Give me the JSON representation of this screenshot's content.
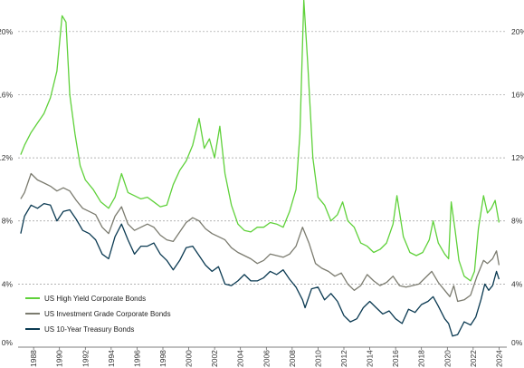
{
  "chart_data": {
    "type": "line",
    "title": "",
    "xlabel": "",
    "ylabel": "",
    "ylim": [
      0,
      22
    ],
    "xlim": [
      1986.8,
      2024.6
    ],
    "y_ticks": [
      "0%",
      "4%",
      "8%",
      "12%",
      "16%",
      "20%"
    ],
    "y_tick_values": [
      0,
      4,
      8,
      12,
      16,
      20
    ],
    "x_ticks": [
      "1988",
      "1990",
      "1992",
      "1994",
      "1996",
      "1998",
      "2000",
      "2002",
      "2004",
      "2006",
      "2008",
      "2010",
      "2012",
      "2014",
      "2016",
      "2018",
      "2020",
      "2022",
      "2024"
    ],
    "x_tick_values": [
      1988,
      1990,
      1992,
      1994,
      1996,
      1998,
      2000,
      2002,
      2004,
      2006,
      2008,
      2010,
      2012,
      2014,
      2016,
      2018,
      2020,
      2022,
      2024
    ],
    "grid": true,
    "legend_position": "bottom-left",
    "series": [
      {
        "name": "US High Yield Corporate Bonds",
        "color": "#5fd13a",
        "x": [
          1987.0,
          1987.3,
          1987.8,
          1988.3,
          1988.8,
          1989.3,
          1989.8,
          1990.2,
          1990.5,
          1990.8,
          1991.2,
          1991.6,
          1992.0,
          1992.6,
          1993.2,
          1993.8,
          1994.3,
          1994.8,
          1995.3,
          1995.8,
          1996.3,
          1996.8,
          1997.3,
          1997.8,
          1998.3,
          1998.8,
          1999.3,
          1999.8,
          2000.3,
          2000.8,
          2001.2,
          2001.6,
          2002.0,
          2002.4,
          2002.8,
          2003.3,
          2003.8,
          2004.3,
          2004.8,
          2005.3,
          2005.8,
          2006.3,
          2006.8,
          2007.3,
          2007.8,
          2008.3,
          2008.6,
          2008.9,
          2009.2,
          2009.6,
          2010.0,
          2010.5,
          2011.0,
          2011.5,
          2011.9,
          2012.3,
          2012.8,
          2013.3,
          2013.8,
          2014.3,
          2014.8,
          2015.3,
          2015.8,
          2016.1,
          2016.6,
          2017.1,
          2017.6,
          2018.1,
          2018.6,
          2018.9,
          2019.3,
          2019.8,
          2020.1,
          2020.3,
          2020.6,
          2020.9,
          2021.3,
          2021.8,
          2022.1,
          2022.4,
          2022.8,
          2023.1,
          2023.4,
          2023.7,
          2024.0
        ],
        "values": [
          12.2,
          12.8,
          13.6,
          14.2,
          14.8,
          15.8,
          17.5,
          21.0,
          20.6,
          16.0,
          13.5,
          11.5,
          10.6,
          10.0,
          9.2,
          8.8,
          9.5,
          11.0,
          9.8,
          9.6,
          9.4,
          9.5,
          9.2,
          8.9,
          9.0,
          10.3,
          11.2,
          11.8,
          12.8,
          14.5,
          12.6,
          13.2,
          12.0,
          14.0,
          11.0,
          9.0,
          7.8,
          7.4,
          7.3,
          7.6,
          7.6,
          7.9,
          7.8,
          7.6,
          8.6,
          10.0,
          13.5,
          22.0,
          18.0,
          12.0,
          9.5,
          9.0,
          8.0,
          8.4,
          9.2,
          8.0,
          7.6,
          6.6,
          6.4,
          6.0,
          6.2,
          6.6,
          7.8,
          9.6,
          7.0,
          6.0,
          5.8,
          6.0,
          6.8,
          8.0,
          6.6,
          5.9,
          5.6,
          9.2,
          7.4,
          5.5,
          4.5,
          4.2,
          4.8,
          7.5,
          9.6,
          8.5,
          8.8,
          9.3,
          7.9
        ]
      },
      {
        "name": "US Investment Grade Corporate Bonds",
        "color": "#7b7b6f",
        "x": [
          1987.0,
          1987.3,
          1987.8,
          1988.3,
          1988.8,
          1989.3,
          1989.8,
          1990.3,
          1990.8,
          1991.3,
          1991.8,
          1992.3,
          1992.8,
          1993.3,
          1993.8,
          1994.3,
          1994.8,
          1995.3,
          1995.8,
          1996.3,
          1996.8,
          1997.3,
          1997.8,
          1998.3,
          1998.8,
          1999.3,
          1999.8,
          2000.3,
          2000.8,
          2001.3,
          2001.8,
          2002.3,
          2002.8,
          2003.3,
          2003.8,
          2004.3,
          2004.8,
          2005.3,
          2005.8,
          2006.3,
          2006.8,
          2007.3,
          2007.8,
          2008.3,
          2008.8,
          2009.3,
          2009.8,
          2010.3,
          2010.8,
          2011.3,
          2011.8,
          2012.3,
          2012.8,
          2013.3,
          2013.8,
          2014.3,
          2014.8,
          2015.3,
          2015.8,
          2016.3,
          2016.8,
          2017.3,
          2017.8,
          2018.3,
          2018.8,
          2019.3,
          2019.8,
          2020.2,
          2020.5,
          2020.8,
          2021.3,
          2021.8,
          2022.3,
          2022.8,
          2023.1,
          2023.5,
          2023.8,
          2024.0
        ],
        "values": [
          9.4,
          9.8,
          11.0,
          10.6,
          10.4,
          10.2,
          9.9,
          10.1,
          9.9,
          9.3,
          8.8,
          8.6,
          8.4,
          7.6,
          7.2,
          8.3,
          8.9,
          7.8,
          7.4,
          7.6,
          7.8,
          7.6,
          7.1,
          6.8,
          6.7,
          7.3,
          7.9,
          8.2,
          8.0,
          7.5,
          7.2,
          7.0,
          6.8,
          6.3,
          6.0,
          5.8,
          5.6,
          5.3,
          5.5,
          5.9,
          5.8,
          5.7,
          5.9,
          6.4,
          7.6,
          6.6,
          5.3,
          5.0,
          4.8,
          4.5,
          4.7,
          4.0,
          3.6,
          3.9,
          4.6,
          4.2,
          3.9,
          4.1,
          4.5,
          3.9,
          3.8,
          3.9,
          4.0,
          4.4,
          4.8,
          4.1,
          3.6,
          3.2,
          3.9,
          2.9,
          3.0,
          3.3,
          4.5,
          5.5,
          5.3,
          5.6,
          6.1,
          5.2
        ]
      },
      {
        "name": "US 10-Year Treasury Bonds",
        "color": "#0b3a52",
        "x": [
          1987.0,
          1987.3,
          1987.8,
          1988.3,
          1988.8,
          1989.3,
          1989.8,
          1990.3,
          1990.8,
          1991.3,
          1991.8,
          1992.3,
          1992.8,
          1993.3,
          1993.8,
          1994.3,
          1994.8,
          1995.3,
          1995.8,
          1996.3,
          1996.8,
          1997.3,
          1997.8,
          1998.3,
          1998.8,
          1999.3,
          1999.8,
          2000.3,
          2000.8,
          2001.3,
          2001.8,
          2002.3,
          2002.8,
          2003.3,
          2003.8,
          2004.3,
          2004.8,
          2005.3,
          2005.8,
          2006.3,
          2006.8,
          2007.3,
          2007.8,
          2008.3,
          2008.8,
          2009.0,
          2009.5,
          2010.0,
          2010.5,
          2011.0,
          2011.5,
          2012.0,
          2012.5,
          2013.0,
          2013.5,
          2014.0,
          2014.5,
          2015.0,
          2015.5,
          2016.0,
          2016.5,
          2017.0,
          2017.5,
          2018.0,
          2018.5,
          2018.9,
          2019.3,
          2019.8,
          2020.1,
          2020.4,
          2020.8,
          2021.3,
          2021.8,
          2022.2,
          2022.6,
          2022.9,
          2023.2,
          2023.5,
          2023.8,
          2024.0
        ],
        "values": [
          7.2,
          8.3,
          9.0,
          8.8,
          9.1,
          9.0,
          8.0,
          8.6,
          8.7,
          8.1,
          7.4,
          7.2,
          6.8,
          5.9,
          5.6,
          7.0,
          7.8,
          6.8,
          5.9,
          6.4,
          6.4,
          6.6,
          5.9,
          5.5,
          4.9,
          5.5,
          6.3,
          6.4,
          5.8,
          5.2,
          4.8,
          5.1,
          4.0,
          3.9,
          4.2,
          4.6,
          4.2,
          4.2,
          4.4,
          4.8,
          4.6,
          4.9,
          4.3,
          3.8,
          3.0,
          2.5,
          3.7,
          3.8,
          3.0,
          3.4,
          2.9,
          2.0,
          1.6,
          1.8,
          2.5,
          2.9,
          2.5,
          2.1,
          2.3,
          1.8,
          1.5,
          2.4,
          2.2,
          2.7,
          2.9,
          3.2,
          2.6,
          1.8,
          1.5,
          0.7,
          0.8,
          1.6,
          1.4,
          1.9,
          3.0,
          4.0,
          3.6,
          3.9,
          4.8,
          4.3
        ]
      }
    ]
  }
}
